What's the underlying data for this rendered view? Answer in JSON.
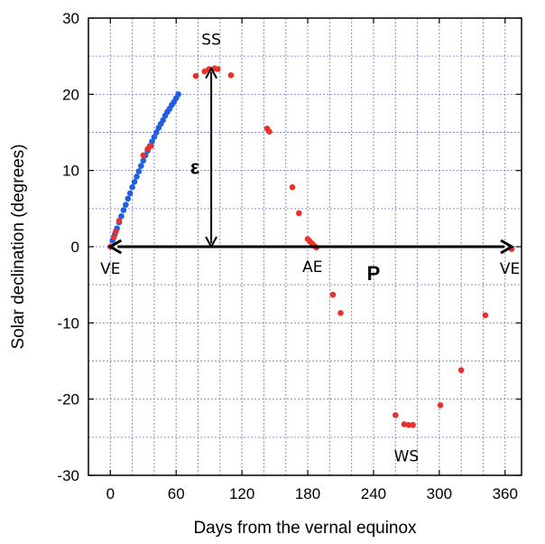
{
  "chart_data": {
    "type": "scatter",
    "xlabel": "Days from the vernal equinox",
    "ylabel": "Solar declination (degrees)",
    "xlim": [
      -20,
      375
    ],
    "ylim": [
      -30,
      30
    ],
    "xticks": [
      0,
      60,
      120,
      180,
      240,
      300,
      360
    ],
    "yticks": [
      -30,
      -20,
      -10,
      0,
      10,
      20,
      30
    ],
    "xtick_labels": [
      "0",
      "60",
      "120",
      "180",
      "240",
      "300",
      "360"
    ],
    "ytick_labels": [
      "-30",
      "-20",
      "-10",
      "0",
      "10",
      "20",
      "30"
    ],
    "grid": true,
    "series": [
      {
        "color": "#1f5fe0",
        "x": [
          2,
          4,
          6,
          8,
          10,
          12,
          14,
          16,
          18,
          20,
          22,
          24,
          26,
          28,
          30,
          32,
          34,
          36,
          38,
          40,
          42,
          44,
          46,
          48,
          50,
          52,
          54,
          56,
          58,
          60,
          62
        ],
        "y": [
          0.8,
          1.6,
          2.4,
          3.2,
          4.0,
          4.8,
          5.5,
          6.3,
          7.0,
          7.8,
          8.5,
          9.2,
          9.9,
          10.6,
          11.3,
          12.0,
          12.6,
          13.2,
          13.8,
          14.4,
          15.0,
          15.6,
          16.1,
          16.6,
          17.2,
          17.7,
          18.1,
          18.6,
          19.0,
          19.5,
          20.0
        ]
      },
      {
        "color": "#e8312a",
        "x": [
          0,
          3,
          5,
          8,
          30,
          34,
          37,
          78,
          86,
          90,
          95,
          98,
          110,
          143,
          145,
          166,
          172,
          180,
          182,
          184,
          186,
          188,
          203,
          210,
          260,
          268,
          272,
          276,
          301,
          320,
          342,
          366
        ],
        "y": [
          0.0,
          1.2,
          2.0,
          3.4,
          12.0,
          12.8,
          13.2,
          22.4,
          23.0,
          23.3,
          23.4,
          23.3,
          22.5,
          15.5,
          15.1,
          7.8,
          4.4,
          1.0,
          0.7,
          0.4,
          0.1,
          -0.1,
          -6.3,
          -8.7,
          -22.1,
          -23.3,
          -23.4,
          -23.4,
          -20.8,
          -16.2,
          -9.0,
          -0.3
        ]
      }
    ],
    "annotations": {
      "ve_left": "VE",
      "ve_right": "VE",
      "ss": "SS",
      "ae": "AE",
      "ws": "WS",
      "epsilon": "ε",
      "period": "P"
    }
  }
}
